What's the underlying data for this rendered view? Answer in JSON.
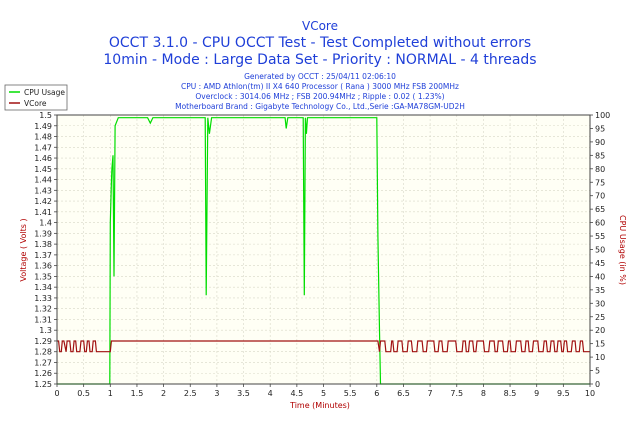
{
  "chart_data": {
    "type": "line",
    "title": "VCore",
    "subtitle_line1": "OCCT 3.1.0 - CPU OCCT Test - Test Completed without errors",
    "subtitle_line2": "10min - Mode : Large Data Set - Priority : NORMAL - 4 threads",
    "info": [
      "Generated by OCCT : 25/04/11 02:06:10",
      "CPU : AMD Athlon(tm) II X4 640 Processor ( Rana ) 3000 MHz FSB 200MHz",
      "Overclock : 3014.06 MHz ; FSB 200.94MHz ; Ripple : 0.02 ( 1.23%)",
      "Motherboard Brand : Gigabyte Technology Co., Ltd.,Serie :GA-MA78GM-UD2H"
    ],
    "xlabel": "Time (Minutes)",
    "ylabel": "Voltage ( Volts )",
    "y2label": "CPU Usage (in %)",
    "xlim": [
      0,
      10
    ],
    "ylim": [
      1.25,
      1.5
    ],
    "y2lim": [
      0,
      100
    ],
    "x_ticks": [
      "0",
      "0.5",
      "1",
      "1.5",
      "2",
      "2.5",
      "3",
      "3.5",
      "4",
      "4.5",
      "5",
      "5.5",
      "6",
      "6.5",
      "7",
      "7.5",
      "8",
      "8.5",
      "9",
      "9.5",
      "10"
    ],
    "y_ticks": [
      "1.25",
      "1.26",
      "1.27",
      "1.28",
      "1.29",
      "1.3",
      "1.31",
      "1.32",
      "1.33",
      "1.34",
      "1.35",
      "1.36",
      "1.37",
      "1.38",
      "1.39",
      "1.4",
      "1.41",
      "1.42",
      "1.43",
      "1.44",
      "1.45",
      "1.46",
      "1.47",
      "1.48",
      "1.49",
      "1.5"
    ],
    "y2_ticks": [
      "0",
      "5",
      "10",
      "15",
      "20",
      "25",
      "30",
      "35",
      "40",
      "45",
      "50",
      "55",
      "60",
      "65",
      "70",
      "75",
      "80",
      "85",
      "90",
      "95",
      "100"
    ],
    "legend": [
      "CPU Usage",
      "VCore"
    ],
    "series": [
      {
        "name": "CPU Usage",
        "axis": "right",
        "color": "#00dd00",
        "x": [
          0,
          0.99,
          1.0,
          1.02,
          1.03,
          1.05,
          1.07,
          1.09,
          1.15,
          1.3,
          1.5,
          1.7,
          1.75,
          1.8,
          2.0,
          2.5,
          2.78,
          2.8,
          2.83,
          2.86,
          2.9,
          3.5,
          4.0,
          4.28,
          4.3,
          4.33,
          4.5,
          4.62,
          4.64,
          4.66,
          4.68,
          4.7,
          5.0,
          5.5,
          5.95,
          6.0,
          6.02,
          6.05,
          6.07,
          10
        ],
        "y": [
          0,
          0,
          60,
          75,
          80,
          85,
          40,
          96,
          99,
          99,
          99,
          99,
          97,
          99,
          99,
          99,
          99,
          33,
          99,
          93,
          99,
          99,
          99,
          99,
          95,
          99,
          99,
          99,
          33,
          99,
          93,
          99,
          99,
          99,
          99,
          99,
          55,
          20,
          0,
          0
        ]
      },
      {
        "name": "VCore",
        "axis": "left",
        "color": "#a01010",
        "x": [
          0,
          0.03,
          0.05,
          0.08,
          0.1,
          0.13,
          0.17,
          0.19,
          0.24,
          0.26,
          0.3,
          0.32,
          0.35,
          0.37,
          0.43,
          0.45,
          0.5,
          0.52,
          0.55,
          0.57,
          0.6,
          0.62,
          0.66,
          0.68,
          0.72,
          0.74,
          0.77,
          0.79,
          0.86,
          0.88,
          0.94,
          0.96,
          1.0,
          1.02,
          6.0,
          6.02,
          6.05,
          6.07,
          6.15,
          6.17,
          6.26,
          6.28,
          6.3,
          6.32,
          6.38,
          6.4,
          6.47,
          6.49,
          6.57,
          6.59,
          6.65,
          6.67,
          6.75,
          6.77,
          6.85,
          6.87,
          6.93,
          6.95,
          7.07,
          7.09,
          7.15,
          7.17,
          7.22,
          7.24,
          7.32,
          7.34,
          7.48,
          7.5,
          7.6,
          7.62,
          7.66,
          7.68,
          7.72,
          7.74,
          7.8,
          7.82,
          7.86,
          7.88,
          8.0,
          8.02,
          8.1,
          8.12,
          8.2,
          8.22,
          8.26,
          8.28,
          8.36,
          8.38,
          8.45,
          8.47,
          8.5,
          8.52,
          8.6,
          8.62,
          8.7,
          8.72,
          8.78,
          8.8,
          8.84,
          8.86,
          8.92,
          8.94,
          9.02,
          9.04,
          9.12,
          9.14,
          9.18,
          9.2,
          9.25,
          9.27,
          9.32,
          9.34,
          9.38,
          9.4,
          9.45,
          9.47,
          9.5,
          9.52,
          9.56,
          9.58,
          9.65,
          9.67,
          9.72,
          9.74,
          9.8,
          9.82,
          9.86,
          9.88,
          10
        ],
        "y": [
          1.29,
          1.29,
          1.28,
          1.28,
          1.29,
          1.29,
          1.28,
          1.29,
          1.29,
          1.28,
          1.28,
          1.29,
          1.29,
          1.28,
          1.28,
          1.29,
          1.29,
          1.28,
          1.28,
          1.29,
          1.29,
          1.28,
          1.28,
          1.29,
          1.29,
          1.28,
          1.28,
          1.28,
          1.28,
          1.28,
          1.28,
          1.28,
          1.28,
          1.29,
          1.29,
          1.29,
          1.28,
          1.29,
          1.29,
          1.28,
          1.28,
          1.29,
          1.29,
          1.28,
          1.28,
          1.29,
          1.29,
          1.28,
          1.28,
          1.29,
          1.29,
          1.28,
          1.28,
          1.29,
          1.29,
          1.28,
          1.28,
          1.29,
          1.29,
          1.28,
          1.28,
          1.29,
          1.29,
          1.28,
          1.28,
          1.29,
          1.29,
          1.28,
          1.28,
          1.29,
          1.29,
          1.28,
          1.28,
          1.29,
          1.29,
          1.28,
          1.28,
          1.29,
          1.29,
          1.28,
          1.28,
          1.29,
          1.29,
          1.28,
          1.28,
          1.29,
          1.29,
          1.28,
          1.28,
          1.29,
          1.29,
          1.28,
          1.28,
          1.29,
          1.29,
          1.28,
          1.28,
          1.29,
          1.29,
          1.28,
          1.28,
          1.29,
          1.29,
          1.28,
          1.28,
          1.29,
          1.29,
          1.28,
          1.28,
          1.29,
          1.29,
          1.28,
          1.28,
          1.29,
          1.29,
          1.28,
          1.28,
          1.29,
          1.29,
          1.28,
          1.28,
          1.29,
          1.29,
          1.28,
          1.28,
          1.29,
          1.29,
          1.28,
          1.28
        ]
      }
    ]
  },
  "colors": {
    "title": "#1f3fd8",
    "plot_bg": "#fffff5",
    "grid": "#d8d8c8",
    "axis_label": "#b00000",
    "cpu_line": "#00dd00",
    "vcore_line": "#a01010"
  }
}
